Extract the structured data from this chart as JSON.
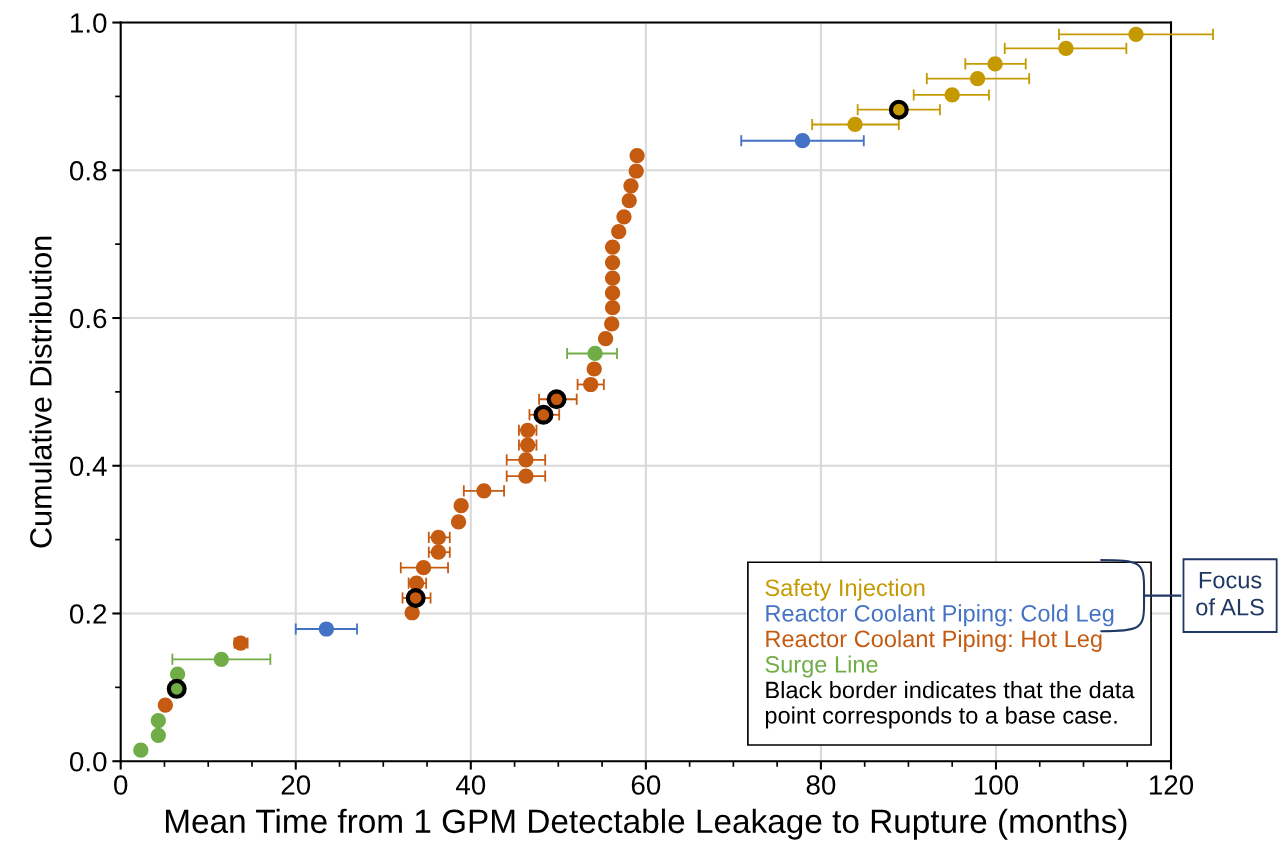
{
  "chart_data": {
    "type": "scatter",
    "xlabel": "Mean Time from 1 GPM Detectable Leakage to Rupture (months)",
    "ylabel": "Cumulative Distribution",
    "xlim": [
      0,
      120
    ],
    "xticks": [
      0,
      20,
      40,
      60,
      80,
      100,
      120
    ],
    "ylim": [
      0,
      1
    ],
    "yticks": [
      {
        "value": 0,
        "label": "0.0"
      },
      {
        "value": 0.2,
        "label": "0.2"
      },
      {
        "value": 0.4,
        "label": "0.4"
      },
      {
        "value": 0.6,
        "label": "0.6"
      },
      {
        "value": 0.8,
        "label": "0.8"
      },
      {
        "value": 1,
        "label": "1.0"
      }
    ],
    "grid": true,
    "legend": "bottom right",
    "marker": "circle",
    "series": [
      {
        "name": "Safety Injection",
        "color": "#c49a00",
        "x": [
          83.9,
          88.9,
          95.0,
          97.9,
          99.9,
          108.0,
          116.0
        ],
        "values": [
          0.862,
          0.882,
          0.902,
          0.924,
          0.944,
          0.965,
          0.984
        ],
        "xerrors": [
          [
            79.0,
            88.9
          ],
          [
            84.2,
            93.6
          ],
          [
            90.6,
            99.2
          ],
          [
            92.1,
            103.8
          ],
          [
            96.5,
            103.4
          ],
          [
            101.0,
            114.9
          ],
          [
            107.2,
            124.8
          ]
        ]
      },
      {
        "name": "Reactor Coolant Piping: Cold Leg",
        "color": "#4472c4",
        "x": [
          23.5,
          77.9
        ],
        "values": [
          0.179,
          0.84
        ],
        "xerrors": [
          [
            20.0,
            27.0
          ],
          [
            70.9,
            84.9
          ]
        ]
      },
      {
        "name": "Reactor Coolant Piping: Hot Leg",
        "color": "#c55a11",
        "x": [
          5.1,
          13.7,
          33.3,
          33.7,
          33.8,
          34.6,
          36.3,
          36.3,
          38.6,
          38.9,
          41.5,
          46.3,
          46.3,
          46.5,
          46.5,
          48.3,
          49.8,
          53.7,
          54.1,
          55.4,
          56.1,
          56.2,
          56.2,
          56.2,
          56.2,
          56.2,
          56.9,
          57.5,
          58.1,
          58.3,
          58.9,
          59.0
        ],
        "values": [
          0.076,
          0.16,
          0.201,
          0.221,
          0.241,
          0.262,
          0.283,
          0.303,
          0.324,
          0.346,
          0.366,
          0.386,
          0.408,
          0.428,
          0.448,
          0.469,
          0.49,
          0.51,
          0.531,
          0.572,
          0.592,
          0.614,
          0.634,
          0.654,
          0.675,
          0.696,
          0.717,
          0.737,
          0.759,
          0.779,
          0.799,
          0.82
        ],
        "xerrors": [
          null,
          [
            13.0,
            14.5
          ],
          null,
          [
            32.2,
            35.4
          ],
          [
            32.9,
            34.9
          ],
          [
            32.0,
            37.4
          ],
          [
            35.2,
            37.6
          ],
          [
            35.2,
            37.6
          ],
          null,
          null,
          [
            39.2,
            43.8
          ],
          [
            44.1,
            48.5
          ],
          [
            44.1,
            48.5
          ],
          [
            45.5,
            47.5
          ],
          [
            45.5,
            47.5
          ],
          [
            46.7,
            50.1
          ],
          [
            47.8,
            52.1
          ],
          [
            52.2,
            55.2
          ],
          null,
          null,
          null,
          null,
          null,
          null,
          null,
          null,
          null,
          null,
          null,
          null,
          null,
          null
        ]
      },
      {
        "name": "Surge Line",
        "color": "#70ad47",
        "x": [
          2.3,
          4.3,
          4.3,
          6.4,
          6.5,
          11.5,
          54.2
        ],
        "values": [
          0.015,
          0.035,
          0.055,
          0.098,
          0.118,
          0.138,
          0.552
        ],
        "xerrors": [
          null,
          null,
          null,
          null,
          null,
          [
            5.9,
            17.1
          ],
          [
            51.0,
            56.7
          ]
        ]
      },
      {
        "color": "#000000",
        "x": [
          6.4,
          33.7,
          48.3,
          49.8,
          88.9
        ],
        "values": [
          0.098,
          0.221,
          0.469,
          0.49,
          0.882
        ]
      }
    ],
    "annotations": [
      "Black border indicates that the data point corresponds to a base case.",
      "Focus of ALS"
    ]
  }
}
